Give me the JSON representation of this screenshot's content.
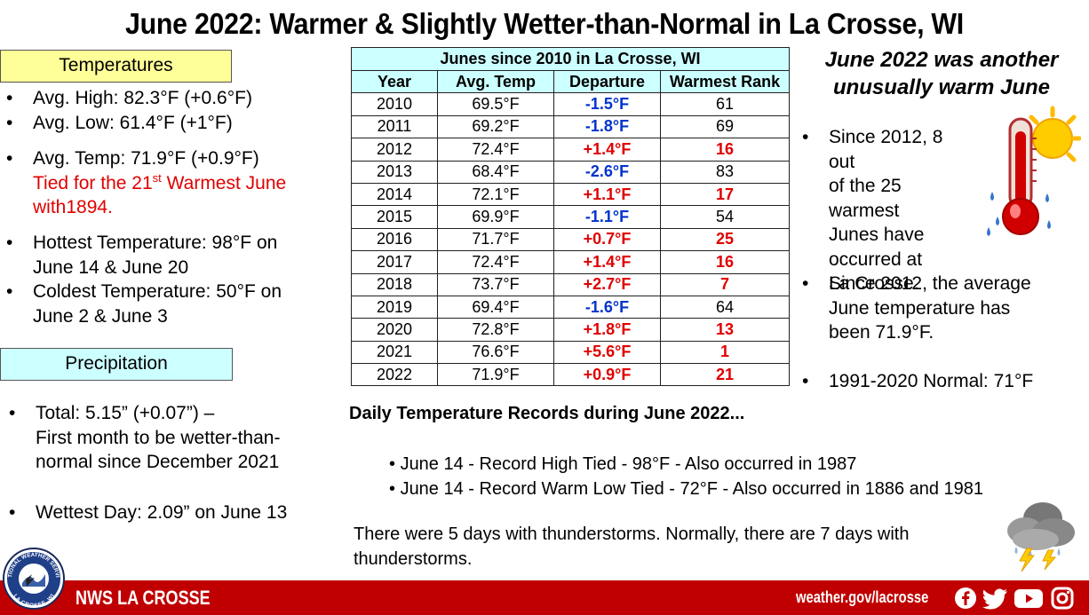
{
  "title": "June 2022:  Warmer & Slightly Wetter-than-Normal in La Crosse, WI",
  "temperatures": {
    "heading": "Temperatures",
    "avg_high": "Avg. High:  82.3°F (+0.6°F)",
    "avg_low": "Avg. Low:  61.4°F (+1°F)",
    "avg_temp": "Avg. Temp:  71.9°F (+0.9°F)",
    "tied_prefix": "Tied for the 21",
    "tied_sup": "st",
    "tied_suffix": " Warmest June",
    "tied_line2": "with1894.",
    "hottest_1": "Hottest Temperature: 98°F on",
    "hottest_2": "June 14 & June 20",
    "coldest_1": "Coldest Temperature: 50°F on",
    "coldest_2": "June 2 & June 3"
  },
  "precipitation": {
    "heading": "Precipitation",
    "total_1": "Total:  5.15” (+0.07”) –",
    "total_2": "First month to be wetter-than-",
    "total_3": "normal since December 2021",
    "wettest": "Wettest Day: 2.09” on June 13"
  },
  "table": {
    "caption": "Junes since 2010 in La Crosse, WI",
    "headers": [
      "Year",
      "Avg. Temp",
      "Departure",
      "Warmest Rank"
    ],
    "rows": [
      {
        "year": "2010",
        "avg": "69.5°F",
        "dep": "-1.5°F",
        "rank": "61"
      },
      {
        "year": "2011",
        "avg": "69.2°F",
        "dep": "-1.8°F",
        "rank": "69"
      },
      {
        "year": "2012",
        "avg": "72.4°F",
        "dep": "+1.4°F",
        "rank": "16"
      },
      {
        "year": "2013",
        "avg": "68.4°F",
        "dep": "-2.6°F",
        "rank": "83"
      },
      {
        "year": "2014",
        "avg": "72.1°F",
        "dep": "+1.1°F",
        "rank": "17"
      },
      {
        "year": "2015",
        "avg": "69.9°F",
        "dep": "-1.1°F",
        "rank": "54"
      },
      {
        "year": "2016",
        "avg": "71.7°F",
        "dep": "+0.7°F",
        "rank": "25"
      },
      {
        "year": "2017",
        "avg": "72.4°F",
        "dep": "+1.4°F",
        "rank": "16"
      },
      {
        "year": "2018",
        "avg": "73.7°F",
        "dep": "+2.7°F",
        "rank": "7"
      },
      {
        "year": "2019",
        "avg": "69.4°F",
        "dep": "-1.6°F",
        "rank": "64"
      },
      {
        "year": "2020",
        "avg": "72.8°F",
        "dep": "+1.8°F",
        "rank": "13"
      },
      {
        "year": "2021",
        "avg": "76.6°F",
        "dep": "+5.6°F",
        "rank": "1"
      },
      {
        "year": "2022",
        "avg": "71.9°F",
        "dep": "+0.9°F",
        "rank": "21"
      }
    ]
  },
  "right": {
    "heading_1": "June 2022 was another",
    "heading_2": "unusually warm June",
    "warmest_1": "Since 2012, 8 out",
    "warmest_2": "of the 25 warmest",
    "warmest_3": "Junes have",
    "warmest_4": "occurred at",
    "warmest_5": "La Crosse.",
    "avg_1": "Since 2012, the average",
    "avg_2": "June temperature has",
    "avg_3": "been 71.9°F.",
    "normal": "1991-2020 Normal: 71°F"
  },
  "records": {
    "heading": "Daily Temperature Records during June 2022...",
    "items": [
      "June 14 - Record High Tied - 98°F - Also occurred in 1987",
      "June 14 - Record Warm Low Tied - 72°F - Also occurred in 1886 and 1981"
    ]
  },
  "storms": {
    "line_1": "There were 5 days with thunderstorms. Normally, there are 7 days with",
    "line_2": "thunderstorms."
  },
  "footer": {
    "brand": "NWS LA CROSSE",
    "url": "weather.gov/lacrosse",
    "icons": [
      "facebook-icon",
      "twitter-icon",
      "youtube-icon",
      "instagram-icon"
    ],
    "bar_color": "#c00000"
  },
  "logo": {
    "top_text": "NATIONAL WEATHER SERVICE",
    "bottom_text": "LA CROSSE, WI"
  },
  "colors": {
    "positive": "#e00000",
    "negative": "#0033cc",
    "temps_box": "#ffff99",
    "precip_box": "#ccffff"
  }
}
